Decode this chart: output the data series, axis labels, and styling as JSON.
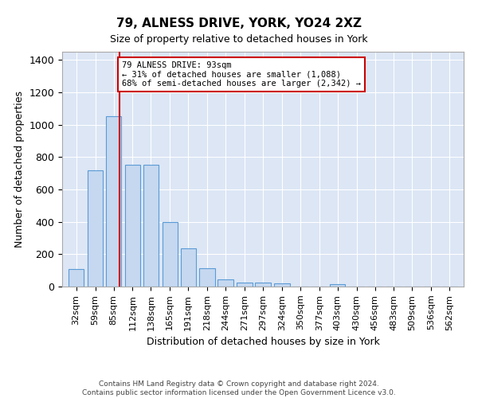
{
  "title": "79, ALNESS DRIVE, YORK, YO24 2XZ",
  "subtitle": "Size of property relative to detached houses in York",
  "xlabel": "Distribution of detached houses by size in York",
  "ylabel": "Number of detached properties",
  "bar_color": "#c5d8f0",
  "bar_edge_color": "#5b9bd5",
  "background_color": "#dce6f5",
  "grid_color": "#ffffff",
  "annotation_text": "79 ALNESS DRIVE: 93sqm\n← 31% of detached houses are smaller (1,088)\n68% of semi-detached houses are larger (2,342) →",
  "vline_color": "#cc0000",
  "vline_x": 93,
  "footer_text": "Contains HM Land Registry data © Crown copyright and database right 2024.\nContains public sector information licensed under the Open Government Licence v3.0.",
  "categories": [
    "32sqm",
    "59sqm",
    "85sqm",
    "112sqm",
    "138sqm",
    "165sqm",
    "191sqm",
    "218sqm",
    "244sqm",
    "271sqm",
    "297sqm",
    "324sqm",
    "350sqm",
    "377sqm",
    "403sqm",
    "430sqm",
    "456sqm",
    "483sqm",
    "509sqm",
    "536sqm",
    "562sqm"
  ],
  "bin_edges": [
    32,
    59,
    85,
    112,
    138,
    165,
    191,
    218,
    244,
    271,
    297,
    324,
    350,
    377,
    403,
    430,
    456,
    483,
    509,
    536,
    562
  ],
  "values": [
    107,
    720,
    1050,
    750,
    750,
    400,
    237,
    115,
    45,
    27,
    27,
    20,
    0,
    0,
    13,
    0,
    0,
    0,
    0,
    0,
    0
  ],
  "ylim": [
    0,
    1450
  ],
  "yticks": [
    0,
    200,
    400,
    600,
    800,
    1000,
    1200,
    1400
  ],
  "title_fontsize": 11,
  "subtitle_fontsize": 9,
  "ylabel_fontsize": 9,
  "xlabel_fontsize": 9
}
